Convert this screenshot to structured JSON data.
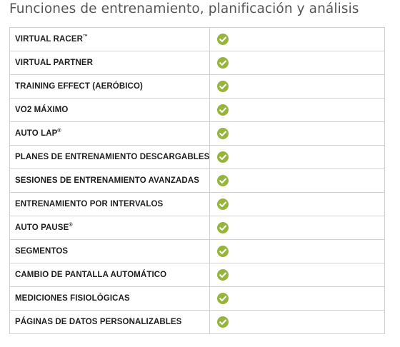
{
  "title": "Funciones de entrenamiento, planificación y análisis",
  "check_color": "#97b43c",
  "rows": [
    {
      "label": "VIRTUAL RACER",
      "mark": "™",
      "supported": true,
      "icon": "check-icon"
    },
    {
      "label": "VIRTUAL PARTNER",
      "mark": "",
      "supported": true,
      "icon": "check-icon"
    },
    {
      "label": "TRAINING EFFECT (AERÓBICO)",
      "mark": "",
      "supported": true,
      "icon": "check-icon"
    },
    {
      "label": "VO2 MÁXIMO",
      "mark": "",
      "supported": true,
      "icon": "check-icon"
    },
    {
      "label": "AUTO LAP",
      "mark": "®",
      "supported": true,
      "icon": "check-icon"
    },
    {
      "label": "PLANES DE ENTRENAMIENTO DESCARGABLES",
      "mark": "",
      "supported": true,
      "icon": "check-icon"
    },
    {
      "label": "SESIONES DE ENTRENAMIENTO AVANZADAS",
      "mark": "",
      "supported": true,
      "icon": "check-icon"
    },
    {
      "label": "ENTRENAMIENTO POR INTERVALOS",
      "mark": "",
      "supported": true,
      "icon": "check-icon"
    },
    {
      "label": "AUTO PAUSE",
      "mark": "®",
      "supported": true,
      "icon": "check-icon"
    },
    {
      "label": "SEGMENTOS",
      "mark": "",
      "supported": true,
      "icon": "check-icon"
    },
    {
      "label": "CAMBIO DE PANTALLA AUTOMÁTICO",
      "mark": "",
      "supported": true,
      "icon": "check-icon"
    },
    {
      "label": "MEDICIONES FISIOLÓGICAS",
      "mark": "",
      "supported": true,
      "icon": "check-icon"
    },
    {
      "label": "PÁGINAS DE DATOS PERSONALIZABLES",
      "mark": "",
      "supported": true,
      "icon": "check-icon"
    }
  ]
}
